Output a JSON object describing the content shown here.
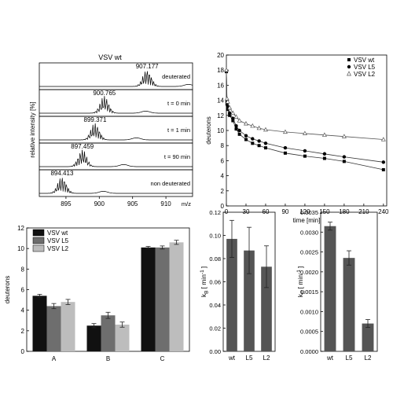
{
  "chart_data": [
    {
      "id": "ms_spectra",
      "type": "line",
      "title": "VSV wt",
      "ylabel": "relative intensity [%]",
      "xlabel": "m/z",
      "xlim": [
        891,
        914
      ],
      "x_ticks": [
        "895",
        "900",
        "905",
        "910"
      ],
      "x_tick_values": [
        895,
        900,
        905,
        910
      ],
      "panels": [
        {
          "name": "deuterated",
          "peak_label": "907.177",
          "center": 907.177
        },
        {
          "name": "t = 0 min",
          "peak_label": "900.765",
          "center": 900.765
        },
        {
          "name": "t = 1 min",
          "peak_label": "899.371",
          "center": 899.371
        },
        {
          "name": "t = 90 min",
          "peak_label": "897.459",
          "center": 897.459
        },
        {
          "name": "non deuterated",
          "peak_label": "894.413",
          "center": 894.413
        }
      ]
    },
    {
      "id": "kinetics",
      "type": "scatter",
      "xlabel": "time [min]",
      "ylabel": "deuterons",
      "xlim": [
        0,
        245
      ],
      "ylim": [
        0,
        20
      ],
      "x_ticks": [
        "0",
        "30",
        "60",
        "90",
        "120",
        "150",
        "180",
        "210",
        "240"
      ],
      "x_tick_values": [
        0,
        30,
        60,
        90,
        120,
        150,
        180,
        210,
        240
      ],
      "y_ticks": [
        "0",
        "2",
        "4",
        "6",
        "8",
        "10",
        "12",
        "14",
        "16",
        "18",
        "20"
      ],
      "y_tick_values": [
        0,
        2,
        4,
        6,
        8,
        10,
        12,
        14,
        16,
        18,
        20
      ],
      "legend_position": "top-right",
      "series": [
        {
          "name": "VSV wt",
          "marker": "square",
          "fit": "solid",
          "x": [
            0,
            1,
            2,
            5,
            10,
            15,
            20,
            30,
            40,
            50,
            60,
            90,
            120,
            150,
            180,
            240
          ],
          "y": [
            17.8,
            13.5,
            12.8,
            12.0,
            11.3,
            10.2,
            9.5,
            8.8,
            8.3,
            8.0,
            7.7,
            7.0,
            6.6,
            6.3,
            5.9,
            4.8
          ]
        },
        {
          "name": "VSV L5",
          "marker": "circle",
          "fit": "solid",
          "x": [
            0,
            1,
            2,
            5,
            10,
            15,
            20,
            30,
            40,
            50,
            60,
            90,
            120,
            150,
            180,
            240
          ],
          "y": [
            17.9,
            13.8,
            13.2,
            12.3,
            11.6,
            10.6,
            10.0,
            9.3,
            8.9,
            8.6,
            8.3,
            7.7,
            7.3,
            6.9,
            6.5,
            5.8
          ]
        },
        {
          "name": "VSV L2",
          "marker": "triangle-open",
          "fit": "solid",
          "x": [
            0,
            1,
            2,
            5,
            10,
            15,
            20,
            30,
            40,
            50,
            60,
            90,
            120,
            150,
            180,
            240
          ],
          "y": [
            18.0,
            14.2,
            13.8,
            13.0,
            12.3,
            11.8,
            11.3,
            10.9,
            10.6,
            10.3,
            10.1,
            9.8,
            9.6,
            9.4,
            9.2,
            8.8
          ]
        }
      ]
    },
    {
      "id": "grouped_bars",
      "type": "bar",
      "ylabel": "deuterons",
      "categories": [
        "A",
        "B",
        "C"
      ],
      "ylim": [
        0,
        12
      ],
      "y_ticks": [
        "0",
        "2",
        "4",
        "6",
        "8",
        "10",
        "12"
      ],
      "y_tick_values": [
        0,
        2,
        4,
        6,
        8,
        10,
        12
      ],
      "legend_position": "top-left",
      "series": [
        {
          "name": "VSV wt",
          "color": "#111111",
          "values": [
            5.4,
            2.5,
            10.1
          ],
          "errors": [
            0.15,
            0.2,
            0.1
          ]
        },
        {
          "name": "VSV L5",
          "color": "#6e6e6e",
          "values": [
            4.4,
            3.5,
            10.1
          ],
          "errors": [
            0.25,
            0.3,
            0.15
          ]
        },
        {
          "name": "VSV L2",
          "color": "#bdbdbd",
          "values": [
            4.8,
            2.6,
            10.6
          ],
          "errors": [
            0.25,
            0.25,
            0.2
          ]
        }
      ]
    },
    {
      "id": "kB_bars",
      "type": "bar",
      "ylabel": "k",
      "ylabel_sub": "B",
      "ylabel_unit": "[ min",
      "ylabel_sup": "-1",
      "ylabel_close": "]",
      "categories": [
        "wt",
        "L5",
        "L2"
      ],
      "ylim": [
        0,
        0.12
      ],
      "y_ticks": [
        "0.00",
        "0.02",
        "0.04",
        "0.06",
        "0.08",
        "0.10",
        "0.12"
      ],
      "y_tick_values": [
        0,
        0.02,
        0.04,
        0.06,
        0.08,
        0.1,
        0.12
      ],
      "color": "#555555",
      "values": [
        0.097,
        0.087,
        0.073
      ],
      "errors": [
        0.016,
        0.02,
        0.018
      ]
    },
    {
      "id": "kC_bars",
      "type": "bar",
      "ylabel": "k",
      "ylabel_sub": "C",
      "ylabel_unit": "[ min",
      "ylabel_sup": "-1",
      "ylabel_close": "]",
      "categories": [
        "wt",
        "L5",
        "L2"
      ],
      "ylim": [
        0,
        0.0035
      ],
      "y_ticks": [
        "0.0000",
        "0.0005",
        "0.0010",
        "0.0015",
        "0.0020",
        "0.0025",
        "0.0030",
        "0.0035"
      ],
      "y_tick_values": [
        0,
        0.0005,
        0.001,
        0.0015,
        0.002,
        0.0025,
        0.003,
        0.0035
      ],
      "color": "#555555",
      "values": [
        0.00315,
        0.00235,
        0.0007
      ],
      "errors": [
        0.0001,
        0.00018,
        0.0001
      ]
    }
  ]
}
